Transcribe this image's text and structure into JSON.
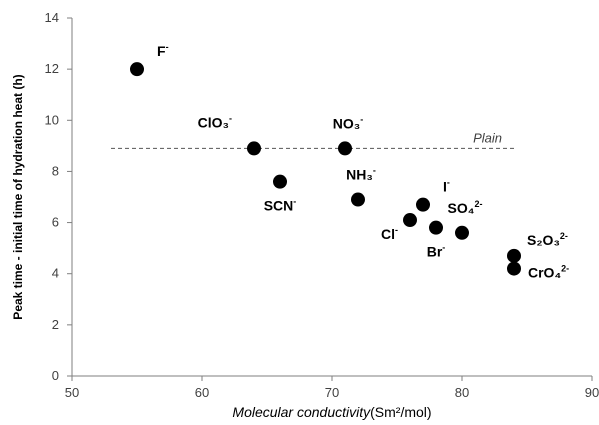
{
  "chart_data": {
    "type": "scatter",
    "xlabel": "Molecular conductivity",
    "xlabel_unit": "(Sm²/mol)",
    "ylabel": "Peak time - initial time of hydration heat (h)",
    "xlim": [
      50,
      90
    ],
    "ylim": [
      0,
      14
    ],
    "xticks": [
      50,
      60,
      70,
      80,
      90
    ],
    "yticks": [
      0,
      2,
      4,
      6,
      8,
      10,
      12,
      14
    ],
    "grid": false,
    "legend": "none",
    "marker_color": "#000000",
    "points": [
      {
        "x": 55,
        "y": 12.0,
        "label": "F",
        "sup": "-",
        "label_pos": "upper-right"
      },
      {
        "x": 64,
        "y": 8.9,
        "label": "ClO₃",
        "sup": "-",
        "label_pos": "upper-left"
      },
      {
        "x": 71,
        "y": 8.9,
        "label": "NO₃",
        "sup": "-",
        "label_pos": "upper"
      },
      {
        "x": 66,
        "y": 7.6,
        "label": "SCN",
        "sup": "-",
        "label_pos": "below"
      },
      {
        "x": 72,
        "y": 6.9,
        "label": "NH₃",
        "sup": "-",
        "label_pos": "upper"
      },
      {
        "x": 77,
        "y": 6.7,
        "label": "I",
        "sup": "-",
        "label_pos": "upper-right"
      },
      {
        "x": 76,
        "y": 6.1,
        "label": "Cl",
        "sup": "-",
        "label_pos": "lower-left"
      },
      {
        "x": 78,
        "y": 5.8,
        "label": "Br",
        "sup": "-",
        "label_pos": "below"
      },
      {
        "x": 80,
        "y": 5.6,
        "label": "SO₄",
        "sup": "2-",
        "label_pos": "upper"
      },
      {
        "x": 84,
        "y": 4.7,
        "label": "S₂O₃",
        "sup": "2-",
        "label_pos": "right"
      },
      {
        "x": 84,
        "y": 4.2,
        "label": "CrO₄",
        "sup": "2-",
        "label_pos": "right-below"
      }
    ],
    "reference_line": {
      "label": "Plain",
      "y": 8.9,
      "x_start": 53,
      "x_end": 84,
      "style": "dashed"
    }
  }
}
